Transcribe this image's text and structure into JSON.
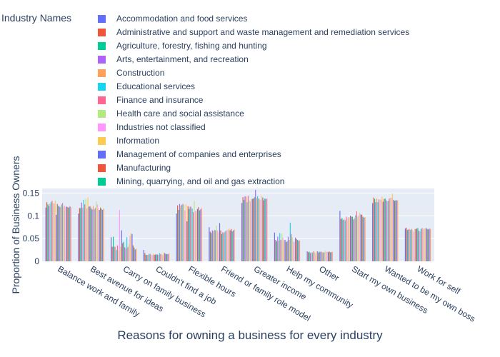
{
  "chart_data": {
    "type": "bar",
    "title": "",
    "xlabel": "Reasons for owning a business for every industry",
    "ylabel": "Proportion of Business Owners",
    "legend_title": "Industry Names",
    "legend_position": "top",
    "grid": true,
    "ylim": [
      0,
      0.16
    ],
    "yticks": [
      0,
      0.05,
      0.1,
      0.15
    ],
    "ytick_labels": [
      "0",
      "0.05",
      "0.1",
      "0.15"
    ],
    "categories": [
      "Balance work and family",
      "Best avenue for ideas",
      "Carry on family business",
      "Couldn't find a job",
      "Flexible hours",
      "Friend or family role model",
      "Greater income",
      "Help my community",
      "Other",
      "Start my own business",
      "Wanted to be my own boss",
      "Work for self"
    ],
    "series": [
      {
        "name": "Accommodation and food services",
        "color": "#636efa",
        "values": [
          0.118,
          0.105,
          0.053,
          0.025,
          0.105,
          0.075,
          0.128,
          0.063,
          0.022,
          0.111,
          0.128,
          0.072
        ]
      },
      {
        "name": "Administrative and support and waste management and remediation services",
        "color": "#EF553B",
        "values": [
          0.13,
          0.117,
          0.032,
          0.018,
          0.123,
          0.065,
          0.141,
          0.047,
          0.02,
          0.093,
          0.14,
          0.074
        ]
      },
      {
        "name": "Agriculture, forestry, fishing and hunting",
        "color": "#00cc96",
        "values": [
          0.125,
          0.117,
          0.054,
          0.014,
          0.113,
          0.062,
          0.135,
          0.044,
          0.021,
          0.095,
          0.137,
          0.069
        ]
      },
      {
        "name": "Arts, entertainment, and recreation",
        "color": "#ab63fa",
        "values": [
          0.122,
          0.129,
          0.032,
          0.014,
          0.126,
          0.068,
          0.143,
          0.054,
          0.018,
          0.091,
          0.13,
          0.07
        ]
      },
      {
        "name": "Construction",
        "color": "#FFA15A",
        "values": [
          0.127,
          0.118,
          0.032,
          0.014,
          0.122,
          0.066,
          0.142,
          0.045,
          0.02,
          0.093,
          0.138,
          0.071
        ]
      },
      {
        "name": "Educational services",
        "color": "#19d3f3",
        "values": [
          0.13,
          0.135,
          0.025,
          0.017,
          0.124,
          0.069,
          0.13,
          0.062,
          0.019,
          0.09,
          0.13,
          0.069
        ]
      },
      {
        "name": "Finance and insurance",
        "color": "#FF6692",
        "values": [
          0.133,
          0.125,
          0.035,
          0.016,
          0.126,
          0.068,
          0.144,
          0.047,
          0.022,
          0.098,
          0.136,
          0.071
        ]
      },
      {
        "name": "Health care and social assistance",
        "color": "#B6E880",
        "values": [
          0.127,
          0.137,
          0.024,
          0.014,
          0.125,
          0.078,
          0.134,
          0.061,
          0.02,
          0.094,
          0.136,
          0.069
        ]
      },
      {
        "name": "Industries not classified",
        "color": "#FF97FF",
        "values": [
          0.127,
          0.116,
          0.113,
          0.014,
          0.112,
          0.068,
          0.132,
          0.052,
          0.018,
          0.097,
          0.135,
          0.065
        ]
      },
      {
        "name": "Information",
        "color": "#FECB52",
        "values": [
          0.133,
          0.14,
          0.032,
          0.017,
          0.125,
          0.064,
          0.137,
          0.046,
          0.022,
          0.096,
          0.142,
          0.071
        ]
      },
      {
        "name": "Management of companies and enterprises",
        "color": "#636efa",
        "values": [
          0.102,
          0.12,
          0.068,
          0.014,
          0.088,
          0.084,
          0.137,
          0.047,
          0.022,
          0.1,
          0.131,
          0.071
        ]
      },
      {
        "name": "Manufacturing",
        "color": "#EF553B",
        "values": [
          0.126,
          0.121,
          0.04,
          0.015,
          0.121,
          0.068,
          0.138,
          0.042,
          0.019,
          0.098,
          0.137,
          0.072
        ]
      },
      {
        "name": "Mining, quarrying, and oil and gas extraction",
        "color": "#00cc96",
        "values": [
          0.122,
          0.117,
          0.043,
          0.015,
          0.115,
          0.06,
          0.141,
          0.044,
          0.021,
          0.098,
          0.138,
          0.073
        ]
      },
      {
        "name": "",
        "color": "#ab63fa",
        "values": [
          0.12,
          0.114,
          0.031,
          0.015,
          0.12,
          0.064,
          0.157,
          0.054,
          0.021,
          0.092,
          0.134,
          0.067
        ]
      },
      {
        "name": "",
        "color": "#FFA15A",
        "values": [
          0.119,
          0.122,
          0.028,
          0.014,
          0.12,
          0.062,
          0.139,
          0.047,
          0.021,
          0.095,
          0.132,
          0.066
        ]
      },
      {
        "name": "",
        "color": "#19d3f3",
        "values": [
          0.125,
          0.114,
          0.053,
          0.018,
          0.116,
          0.065,
          0.143,
          0.085,
          0.019,
          0.101,
          0.133,
          0.071
        ]
      },
      {
        "name": "",
        "color": "#FF6692",
        "values": [
          0.128,
          0.117,
          0.031,
          0.016,
          0.108,
          0.067,
          0.138,
          0.06,
          0.02,
          0.11,
          0.138,
          0.073
        ]
      },
      {
        "name": "",
        "color": "#B6E880",
        "values": [
          0.12,
          0.132,
          0.038,
          0.016,
          0.133,
          0.069,
          0.137,
          0.053,
          0.023,
          0.099,
          0.14,
          0.071
        ]
      },
      {
        "name": "",
        "color": "#FF97FF",
        "values": [
          0.122,
          0.125,
          0.056,
          0.014,
          0.111,
          0.069,
          0.135,
          0.043,
          0.021,
          0.101,
          0.14,
          0.072
        ]
      },
      {
        "name": "",
        "color": "#FECB52",
        "values": [
          0.12,
          0.117,
          0.062,
          0.019,
          0.11,
          0.072,
          0.144,
          0.043,
          0.021,
          0.107,
          0.149,
          0.072
        ]
      },
      {
        "name": "",
        "color": "#636efa",
        "values": [
          0.12,
          0.113,
          0.06,
          0.018,
          0.115,
          0.068,
          0.14,
          0.052,
          0.02,
          0.103,
          0.135,
          0.073
        ]
      },
      {
        "name": "",
        "color": "#EF553B",
        "values": [
          0.119,
          0.118,
          0.035,
          0.016,
          0.119,
          0.071,
          0.134,
          0.049,
          0.022,
          0.102,
          0.133,
          0.071
        ]
      },
      {
        "name": "",
        "color": "#00cc96",
        "values": [
          0.118,
          0.115,
          0.03,
          0.016,
          0.112,
          0.066,
          0.138,
          0.047,
          0.02,
          0.098,
          0.134,
          0.07
        ]
      },
      {
        "name": "",
        "color": "#ab63fa",
        "values": [
          0.121,
          0.113,
          0.026,
          0.016,
          0.114,
          0.068,
          0.137,
          0.045,
          0.02,
          0.096,
          0.134,
          0.072
        ]
      },
      {
        "name": "",
        "color": "#FFA15A",
        "values": [
          0.119,
          0.116,
          0.028,
          0.017,
          0.117,
          0.07,
          0.138,
          0.046,
          0.021,
          0.097,
          0.134,
          0.071
        ]
      }
    ]
  }
}
